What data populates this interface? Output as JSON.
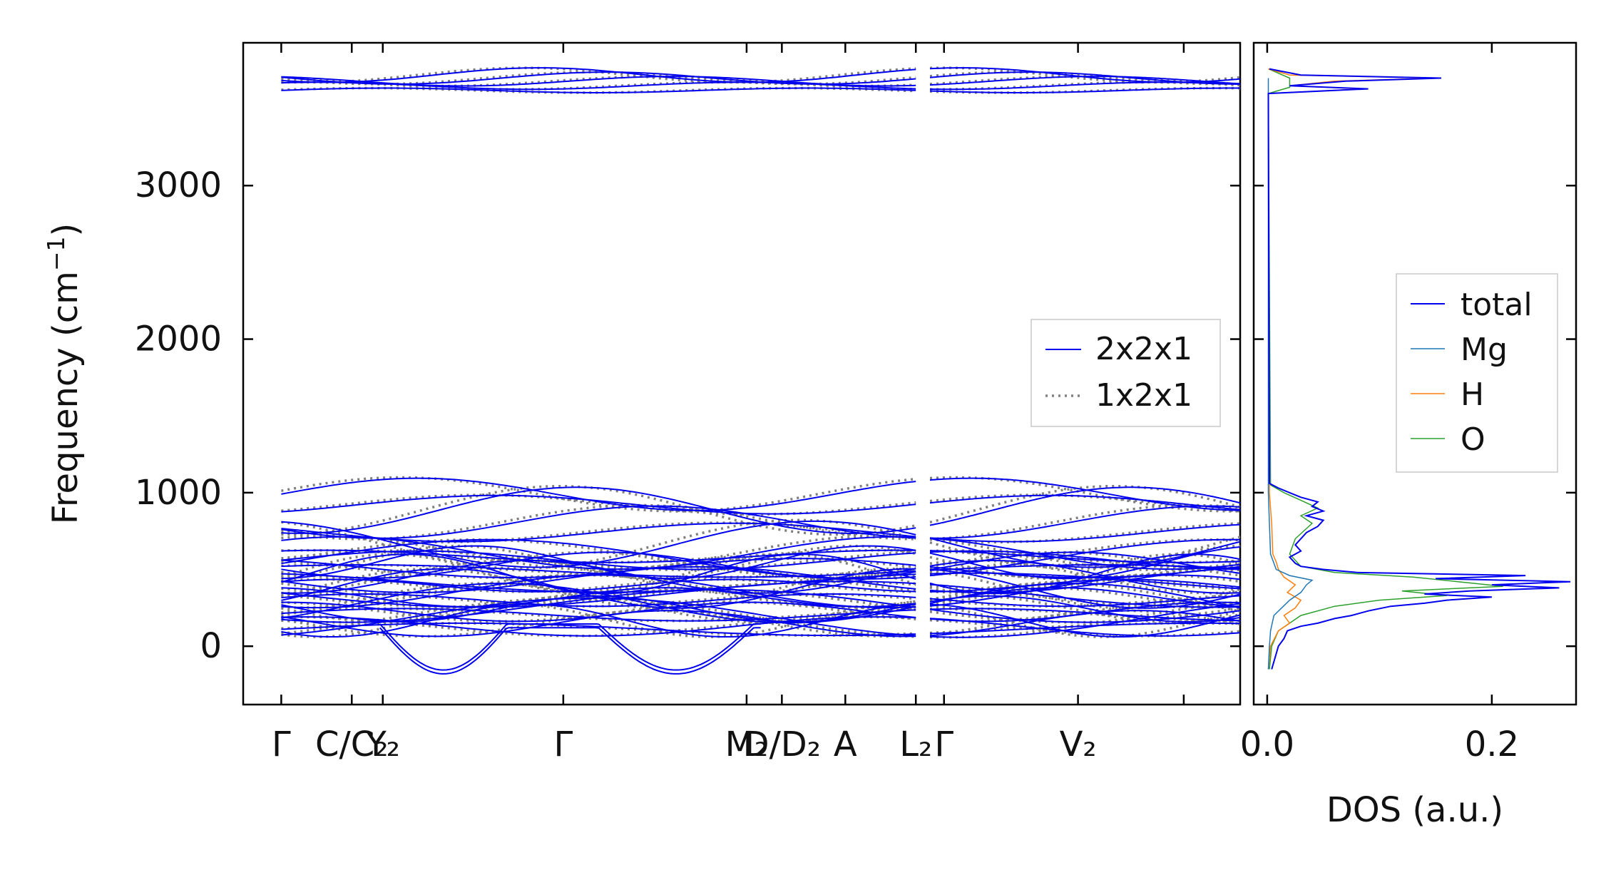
{
  "chart_data": [
    {
      "type": "line",
      "ylabel": "Frequency (cm",
      "ylabel_sup": "−1",
      "ylabel_close": ")",
      "ylim": [
        -380,
        3930
      ],
      "yticks": [
        0,
        1000,
        2000,
        3000
      ],
      "ytick_labels": [
        "0",
        "1000",
        "2000",
        "3000"
      ],
      "x_segments": [
        [
          0,
          4.5
        ],
        [
          4.6,
          6.8
        ]
      ],
      "xlim": [
        -0.27,
        6.8
      ],
      "xticks": [
        {
          "x": 0.0,
          "label": "Γ"
        },
        {
          "x": 0.5,
          "label": "C/C₂"
        },
        {
          "x": 0.72,
          "label": "Y₂"
        },
        {
          "x": 2.0,
          "label": "Γ"
        },
        {
          "x": 3.3,
          "label": "M₂"
        },
        {
          "x": 3.55,
          "label": "D/D₂"
        },
        {
          "x": 4.0,
          "label": "A"
        },
        {
          "x": 4.5,
          "label": "L₂"
        },
        {
          "x": 4.7,
          "label": "Γ"
        },
        {
          "x": 5.65,
          "label": "V₂"
        },
        {
          "x": 6.4,
          "label": ""
        }
      ],
      "legend": {
        "placement": "center-right",
        "entries": [
          "2x2x1",
          "1x2x1"
        ]
      },
      "series": [
        {
          "name": "2x2x1",
          "color": "#0000ee",
          "style": "solid"
        },
        {
          "name": "1x2x1",
          "color": "#808080",
          "style": "dotted"
        }
      ]
    },
    {
      "type": "line",
      "xlabel": "DOS (a.u.)",
      "xlim": [
        -0.012,
        0.275
      ],
      "xticks": [
        0.0,
        0.2
      ],
      "xtick_labels": [
        "0.0",
        "0.2"
      ],
      "ylim": [
        -380,
        3930
      ],
      "legend": {
        "placement": "center-right",
        "entries": [
          "total",
          "Mg",
          "H",
          "O"
        ]
      },
      "series": [
        {
          "name": "total",
          "color": "#0000ee",
          "points": [
            [
              -150,
              0.004
            ],
            [
              -50,
              0.008
            ],
            [
              0,
              0.01
            ],
            [
              50,
              0.015
            ],
            [
              100,
              0.018
            ],
            [
              130,
              0.03
            ],
            [
              150,
              0.045
            ],
            [
              180,
              0.06
            ],
            [
              200,
              0.075
            ],
            [
              230,
              0.09
            ],
            [
              260,
              0.11
            ],
            [
              280,
              0.14
            ],
            [
              300,
              0.16
            ],
            [
              320,
              0.2
            ],
            [
              340,
              0.14
            ],
            [
              360,
              0.18
            ],
            [
              380,
              0.26
            ],
            [
              400,
              0.2
            ],
            [
              420,
              0.27
            ],
            [
              440,
              0.15
            ],
            [
              460,
              0.23
            ],
            [
              480,
              0.08
            ],
            [
              500,
              0.05
            ],
            [
              520,
              0.03
            ],
            [
              540,
              0.025
            ],
            [
              580,
              0.02
            ],
            [
              620,
              0.03
            ],
            [
              660,
              0.025
            ],
            [
              700,
              0.03
            ],
            [
              740,
              0.035
            ],
            [
              780,
              0.045
            ],
            [
              820,
              0.05
            ],
            [
              850,
              0.035
            ],
            [
              880,
              0.05
            ],
            [
              910,
              0.04
            ],
            [
              940,
              0.045
            ],
            [
              970,
              0.03
            ],
            [
              1000,
              0.02
            ],
            [
              1030,
              0.01
            ],
            [
              1060,
              0.002
            ],
            [
              3600,
              0.001
            ],
            [
              3630,
              0.09
            ],
            [
              3650,
              0.02
            ],
            [
              3680,
              0.07
            ],
            [
              3700,
              0.155
            ],
            [
              3720,
              0.03
            ],
            [
              3760,
              0.002
            ]
          ]
        },
        {
          "name": "Mg",
          "color": "#1f77b4",
          "points": [
            [
              -150,
              0.001
            ],
            [
              0,
              0.002
            ],
            [
              100,
              0.003
            ],
            [
              200,
              0.006
            ],
            [
              300,
              0.02
            ],
            [
              350,
              0.03
            ],
            [
              400,
              0.035
            ],
            [
              430,
              0.04
            ],
            [
              460,
              0.02
            ],
            [
              500,
              0.008
            ],
            [
              600,
              0.003
            ],
            [
              800,
              0.002
            ],
            [
              1000,
              0.001
            ],
            [
              3700,
              0.001
            ]
          ]
        },
        {
          "name": "H",
          "color": "#ff7f0e",
          "points": [
            [
              -150,
              0.001
            ],
            [
              0,
              0.003
            ],
            [
              100,
              0.01
            ],
            [
              150,
              0.02
            ],
            [
              200,
              0.015
            ],
            [
              250,
              0.025
            ],
            [
              300,
              0.03
            ],
            [
              350,
              0.018
            ],
            [
              400,
              0.025
            ],
            [
              450,
              0.015
            ],
            [
              500,
              0.01
            ],
            [
              550,
              0.008
            ],
            [
              600,
              0.005
            ],
            [
              800,
              0.004
            ],
            [
              1000,
              0.002
            ],
            [
              3600,
              0.001
            ],
            [
              3630,
              0.085
            ],
            [
              3650,
              0.02
            ],
            [
              3680,
              0.06
            ],
            [
              3700,
              0.15
            ],
            [
              3720,
              0.02
            ],
            [
              3760,
              0.001
            ]
          ]
        },
        {
          "name": "O",
          "color": "#2ca02c",
          "points": [
            [
              -150,
              0.002
            ],
            [
              0,
              0.004
            ],
            [
              100,
              0.01
            ],
            [
              200,
              0.03
            ],
            [
              260,
              0.06
            ],
            [
              300,
              0.1
            ],
            [
              330,
              0.16
            ],
            [
              360,
              0.12
            ],
            [
              390,
              0.21
            ],
            [
              420,
              0.17
            ],
            [
              450,
              0.13
            ],
            [
              480,
              0.06
            ],
            [
              520,
              0.03
            ],
            [
              600,
              0.02
            ],
            [
              700,
              0.025
            ],
            [
              800,
              0.04
            ],
            [
              850,
              0.03
            ],
            [
              900,
              0.045
            ],
            [
              950,
              0.03
            ],
            [
              1000,
              0.015
            ],
            [
              1050,
              0.003
            ],
            [
              3600,
              0.001
            ],
            [
              3640,
              0.02
            ],
            [
              3700,
              0.02
            ],
            [
              3760,
              0.001
            ]
          ]
        }
      ]
    }
  ]
}
